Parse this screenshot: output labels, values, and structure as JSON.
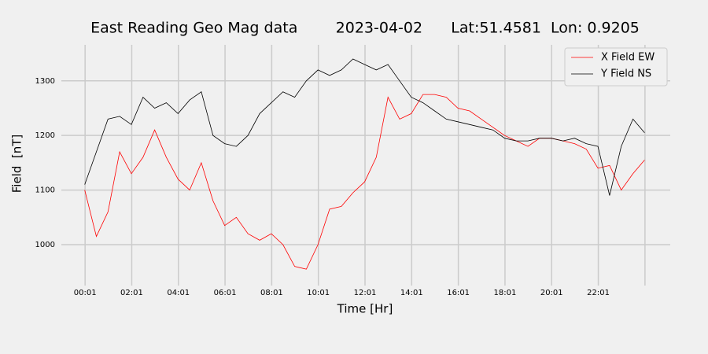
{
  "chart_data": {
    "type": "line",
    "title": "East Reading Geo Mag data        2023-04-02      Lat:51.4581  Lon: 0.9205",
    "x_label": "Time  [Hr]",
    "y_label": "Field  [nT]",
    "x": [
      0,
      0.5,
      1,
      1.5,
      2,
      2.5,
      3,
      3.5,
      4,
      4.5,
      5,
      5.5,
      6,
      6.5,
      7,
      7.5,
      8,
      8.5,
      9,
      9.5,
      10,
      10.5,
      11,
      11.5,
      12,
      12.5,
      13,
      13.5,
      14,
      14.5,
      15,
      15.5,
      16,
      16.5,
      17,
      17.5,
      18,
      18.5,
      19,
      19.5,
      20,
      20.5,
      21,
      21.5,
      22,
      22.5,
      23,
      23.5,
      24
    ],
    "series": [
      {
        "name": "X Field EW",
        "color": "#ff0000",
        "values": [
          1100,
          1015,
          1060,
          1170,
          1130,
          1160,
          1210,
          1160,
          1120,
          1100,
          1150,
          1080,
          1035,
          1050,
          1020,
          1008,
          1020,
          1000,
          960,
          955,
          1000,
          1065,
          1070,
          1095,
          1115,
          1160,
          1270,
          1230,
          1240,
          1275,
          1275,
          1270,
          1250,
          1245,
          1230,
          1215,
          1200,
          1190,
          1180,
          1195,
          1195,
          1190,
          1185,
          1175,
          1140,
          1145,
          1100,
          1130,
          1155
        ]
      },
      {
        "name": "Y Field NS",
        "color": "#000000",
        "values": [
          1110,
          1170,
          1230,
          1235,
          1220,
          1270,
          1250,
          1260,
          1240,
          1265,
          1280,
          1200,
          1185,
          1180,
          1200,
          1240,
          1260,
          1280,
          1270,
          1300,
          1320,
          1310,
          1320,
          1340,
          1330,
          1320,
          1330,
          1300,
          1270,
          1260,
          1245,
          1230,
          1225,
          1220,
          1215,
          1210,
          1195,
          1190,
          1190,
          1195,
          1195,
          1190,
          1195,
          1185,
          1180,
          1090,
          1180,
          1230,
          1205
        ]
      }
    ],
    "xlim": [
      -1.0,
      25.1
    ],
    "ylim": [
      925,
      1366
    ],
    "xticks": [
      {
        "value": 0.0167,
        "label": "00:01"
      },
      {
        "value": 2.0167,
        "label": "02:01"
      },
      {
        "value": 4.0167,
        "label": "04:01"
      },
      {
        "value": 6.0167,
        "label": "06:01"
      },
      {
        "value": 8.0167,
        "label": "08:01"
      },
      {
        "value": 10.0167,
        "label": "10:01"
      },
      {
        "value": 12.0167,
        "label": "12:01"
      },
      {
        "value": 14.0167,
        "label": "14:01"
      },
      {
        "value": 16.0167,
        "label": "16:01"
      },
      {
        "value": 18.0167,
        "label": "18:01"
      },
      {
        "value": 20.0167,
        "label": "20:01"
      },
      {
        "value": 22.0167,
        "label": "22:01"
      },
      {
        "value": 24.0167,
        "label": null
      }
    ],
    "yticks": [
      1000,
      1100,
      1200,
      1300
    ],
    "grid": true,
    "legend": "upper right"
  }
}
